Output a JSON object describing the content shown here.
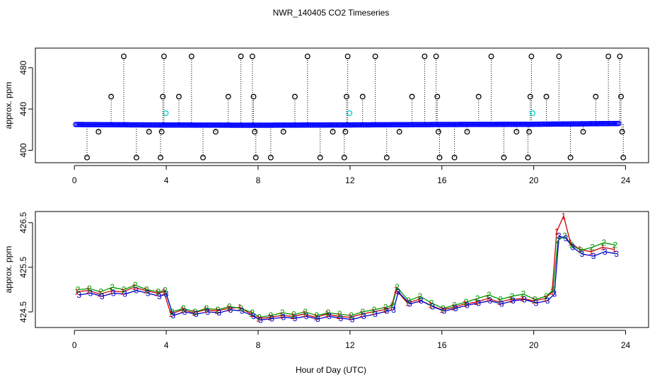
{
  "figure": {
    "title": "NWR_140405  CO2 Timeseries",
    "xlabel": "Hour of Day (UTC)"
  },
  "chart_data": [
    {
      "type": "scatter",
      "title": "NWR_140405  CO2 Timeseries",
      "xlabel": "",
      "ylabel": "approx. ppm",
      "xlim": [
        -1.7,
        25
      ],
      "ylim": [
        388,
        499
      ],
      "xticks": [
        "0",
        "4",
        "8",
        "12",
        "16",
        "20",
        "24"
      ],
      "yticks": [
        "400",
        "440",
        "480"
      ],
      "series": [
        {
          "name": "blue",
          "color": "#0000ff",
          "baseline_x": [
            0.05,
            3.95,
            7.9,
            11.9,
            15.9,
            19.85,
            23.75
          ],
          "baseline_y": [
            425.0,
            424.5,
            424.3,
            424.6,
            425.0,
            425.2,
            426.0
          ]
        },
        {
          "name": "spikes",
          "color": "#000000",
          "points": [
            {
              "x": 0.55,
              "y": 393
            },
            {
              "x": 1.05,
              "y": 418
            },
            {
              "x": 1.6,
              "y": 452
            },
            {
              "x": 2.15,
              "y": 491
            },
            {
              "x": 2.7,
              "y": 393
            },
            {
              "x": 3.25,
              "y": 418
            },
            {
              "x": 3.75,
              "y": 393
            },
            {
              "x": 3.8,
              "y": 418
            },
            {
              "x": 3.85,
              "y": 452
            },
            {
              "x": 3.9,
              "y": 491
            },
            {
              "x": 4.55,
              "y": 452
            },
            {
              "x": 5.1,
              "y": 491
            },
            {
              "x": 5.6,
              "y": 393
            },
            {
              "x": 6.15,
              "y": 418
            },
            {
              "x": 6.7,
              "y": 452
            },
            {
              "x": 7.25,
              "y": 491
            },
            {
              "x": 7.75,
              "y": 491
            },
            {
              "x": 7.8,
              "y": 452
            },
            {
              "x": 7.85,
              "y": 418
            },
            {
              "x": 7.9,
              "y": 393
            },
            {
              "x": 8.55,
              "y": 393
            },
            {
              "x": 9.1,
              "y": 418
            },
            {
              "x": 9.6,
              "y": 452
            },
            {
              "x": 10.15,
              "y": 491
            },
            {
              "x": 10.7,
              "y": 393
            },
            {
              "x": 11.25,
              "y": 418
            },
            {
              "x": 11.75,
              "y": 393
            },
            {
              "x": 11.8,
              "y": 418
            },
            {
              "x": 11.85,
              "y": 452
            },
            {
              "x": 11.9,
              "y": 491
            },
            {
              "x": 12.55,
              "y": 452
            },
            {
              "x": 13.1,
              "y": 491
            },
            {
              "x": 13.6,
              "y": 393
            },
            {
              "x": 14.15,
              "y": 418
            },
            {
              "x": 14.7,
              "y": 452
            },
            {
              "x": 15.25,
              "y": 491
            },
            {
              "x": 15.75,
              "y": 491
            },
            {
              "x": 15.8,
              "y": 452
            },
            {
              "x": 15.85,
              "y": 418
            },
            {
              "x": 15.9,
              "y": 393
            },
            {
              "x": 16.55,
              "y": 393
            },
            {
              "x": 17.1,
              "y": 418
            },
            {
              "x": 17.6,
              "y": 452
            },
            {
              "x": 18.15,
              "y": 491
            },
            {
              "x": 18.7,
              "y": 393
            },
            {
              "x": 19.25,
              "y": 418
            },
            {
              "x": 19.75,
              "y": 393
            },
            {
              "x": 19.8,
              "y": 418
            },
            {
              "x": 19.85,
              "y": 452
            },
            {
              "x": 19.9,
              "y": 491
            },
            {
              "x": 20.55,
              "y": 452
            },
            {
              "x": 21.1,
              "y": 491
            },
            {
              "x": 21.6,
              "y": 393
            },
            {
              "x": 22.15,
              "y": 418
            },
            {
              "x": 22.7,
              "y": 452
            },
            {
              "x": 23.25,
              "y": 491
            },
            {
              "x": 23.75,
              "y": 491
            },
            {
              "x": 23.8,
              "y": 452
            },
            {
              "x": 23.85,
              "y": 418
            },
            {
              "x": 23.9,
              "y": 393
            }
          ]
        },
        {
          "name": "cyan",
          "color": "#00cccc",
          "points": [
            {
              "x": 3.98,
              "y": 436
            },
            {
              "x": 11.98,
              "y": 436
            },
            {
              "x": 19.95,
              "y": 436
            }
          ]
        }
      ]
    },
    {
      "type": "line",
      "title": "",
      "xlabel": "Hour of Day (UTC)",
      "ylabel": "approx. ppm",
      "xlim": [
        -1.7,
        25
      ],
      "ylim": [
        424.15,
        426.75
      ],
      "xticks": [
        "0",
        "4",
        "8",
        "12",
        "16",
        "20",
        "24"
      ],
      "yticks": [
        "424.5",
        "425.5",
        "426.5"
      ],
      "series": [
        {
          "name": "1",
          "color": "#cc0000",
          "x": [
            0.1,
            0.6,
            1.1,
            1.6,
            2.1,
            2.6,
            3.1,
            3.6,
            3.9,
            4.2,
            4.7,
            5.2,
            5.7,
            6.2,
            6.7,
            7.2,
            7.7,
            8.0,
            8.5,
            9.0,
            9.5,
            10.0,
            10.5,
            11.0,
            11.5,
            12.0,
            12.5,
            13.0,
            13.5,
            13.8,
            14.0,
            14.5,
            15.0,
            15.5,
            16.0,
            16.5,
            17.0,
            17.5,
            18.0,
            18.5,
            19.0,
            19.5,
            20.0,
            20.5,
            20.8,
            21.0,
            21.3,
            21.6,
            22.0,
            22.5,
            23.0,
            23.5
          ],
          "y": [
            424.95,
            424.98,
            424.9,
            424.97,
            424.95,
            425.05,
            424.98,
            424.92,
            424.95,
            424.45,
            424.55,
            424.48,
            424.55,
            424.52,
            424.58,
            424.6,
            424.45,
            424.35,
            424.38,
            424.42,
            424.4,
            424.45,
            424.38,
            424.45,
            424.4,
            424.38,
            424.45,
            424.5,
            424.55,
            424.6,
            425.0,
            424.7,
            424.78,
            424.65,
            424.55,
            424.6,
            424.68,
            424.72,
            424.8,
            424.72,
            424.78,
            424.8,
            424.75,
            424.8,
            424.95,
            426.3,
            426.65,
            426.05,
            425.9,
            425.85,
            425.95,
            425.9
          ]
        },
        {
          "name": "2",
          "color": "#009900",
          "x": [
            0.15,
            0.65,
            1.15,
            1.65,
            2.15,
            2.65,
            3.15,
            3.65,
            3.95,
            4.25,
            4.75,
            5.25,
            5.75,
            6.25,
            6.75,
            7.25,
            7.75,
            8.05,
            8.55,
            9.05,
            9.55,
            10.05,
            10.55,
            11.05,
            11.55,
            12.05,
            12.55,
            13.05,
            13.55,
            13.85,
            14.05,
            14.55,
            15.05,
            15.55,
            16.05,
            16.55,
            17.05,
            17.55,
            18.05,
            18.55,
            19.05,
            19.55,
            20.05,
            20.55,
            20.85,
            21.05,
            21.35,
            21.65,
            22.05,
            22.55,
            23.05,
            23.55
          ],
          "y": [
            425.0,
            425.02,
            424.95,
            425.05,
            425.0,
            425.1,
            425.0,
            424.95,
            424.98,
            424.5,
            424.58,
            424.5,
            424.58,
            424.55,
            424.62,
            424.58,
            424.48,
            424.38,
            424.42,
            424.48,
            424.44,
            424.5,
            424.42,
            424.48,
            424.45,
            424.42,
            424.5,
            424.55,
            424.6,
            424.65,
            425.05,
            424.75,
            424.85,
            424.7,
            424.58,
            424.65,
            424.72,
            424.8,
            424.88,
            424.78,
            424.85,
            424.9,
            424.78,
            424.85,
            425.0,
            426.1,
            426.2,
            426.0,
            425.88,
            425.95,
            426.05,
            426.0
          ]
        },
        {
          "name": "3",
          "color": "#0000cc",
          "x": [
            0.2,
            0.7,
            1.2,
            1.7,
            2.2,
            2.7,
            3.2,
            3.7,
            4.0,
            4.3,
            4.8,
            5.3,
            5.8,
            6.3,
            6.8,
            7.3,
            7.8,
            8.1,
            8.6,
            9.1,
            9.6,
            10.1,
            10.6,
            11.1,
            11.6,
            12.1,
            12.6,
            13.1,
            13.6,
            13.9,
            14.1,
            14.6,
            15.1,
            15.6,
            16.1,
            16.6,
            17.1,
            17.6,
            18.1,
            18.6,
            19.1,
            19.6,
            20.1,
            20.6,
            20.9,
            21.1,
            21.4,
            21.7,
            22.1,
            22.6,
            23.1,
            23.6
          ],
          "y": [
            424.88,
            424.92,
            424.85,
            424.92,
            424.9,
            424.98,
            424.92,
            424.85,
            424.9,
            424.42,
            424.5,
            424.45,
            424.5,
            424.48,
            424.55,
            424.52,
            424.4,
            424.32,
            424.35,
            424.38,
            424.36,
            424.4,
            424.34,
            424.4,
            424.36,
            424.33,
            424.4,
            424.45,
            424.52,
            424.55,
            424.95,
            424.68,
            424.75,
            424.62,
            424.52,
            424.58,
            424.65,
            424.7,
            424.75,
            424.68,
            424.75,
            424.78,
            424.7,
            424.75,
            424.9,
            426.2,
            426.15,
            425.95,
            425.8,
            425.75,
            425.85,
            425.8
          ]
        }
      ]
    }
  ]
}
